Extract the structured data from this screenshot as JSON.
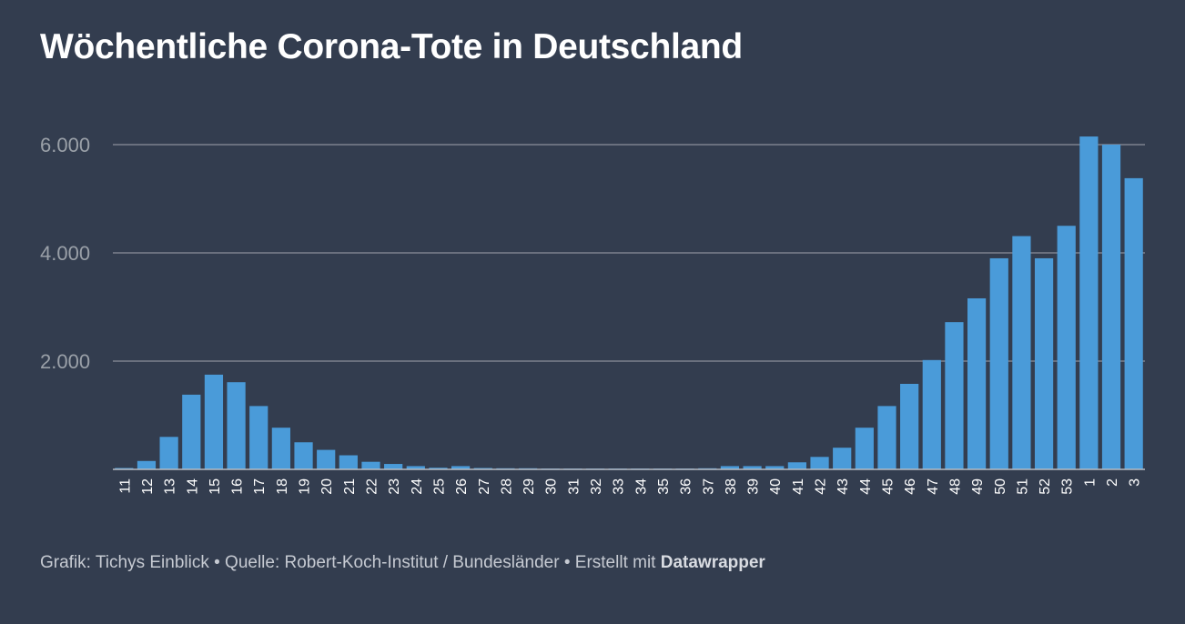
{
  "title": "Wöchentliche Corona-Tote in Deutschland",
  "footer": {
    "text": "Grafik: Tichys Einblick • Quelle: Robert-Koch-Institut / Bundesländer • Erstellt mit ",
    "brand": "Datawrapper"
  },
  "colors": {
    "background": "#333d4f",
    "bar": "#4a9bd9",
    "grid": "#8a909a",
    "tick_y": "#9aa0a8",
    "tick_x": "#ffffff"
  },
  "chart_data": {
    "type": "bar",
    "title": "Wöchentliche Corona-Tote in Deutschland",
    "xlabel": "",
    "ylabel": "",
    "ylim": [
      0,
      6500
    ],
    "yticks": [
      2000,
      4000,
      6000
    ],
    "ytick_labels": [
      "2.000",
      "4.000",
      "6.000"
    ],
    "grid": true,
    "categories": [
      "11",
      "12",
      "13",
      "14",
      "15",
      "16",
      "17",
      "18",
      "19",
      "20",
      "21",
      "22",
      "23",
      "24",
      "25",
      "26",
      "27",
      "28",
      "29",
      "30",
      "31",
      "32",
      "33",
      "34",
      "35",
      "36",
      "37",
      "38",
      "39",
      "40",
      "41",
      "42",
      "43",
      "44",
      "45",
      "46",
      "47",
      "48",
      "49",
      "50",
      "51",
      "52",
      "53",
      "1",
      "2",
      "3"
    ],
    "values": [
      25,
      155,
      600,
      1380,
      1750,
      1610,
      1170,
      770,
      500,
      360,
      260,
      140,
      100,
      60,
      30,
      60,
      25,
      20,
      20,
      15,
      15,
      15,
      15,
      15,
      15,
      15,
      20,
      60,
      60,
      60,
      130,
      230,
      400,
      770,
      1170,
      1580,
      2020,
      2720,
      3160,
      3900,
      4310,
      3900,
      4500,
      6150,
      6000,
      5380
    ]
  }
}
